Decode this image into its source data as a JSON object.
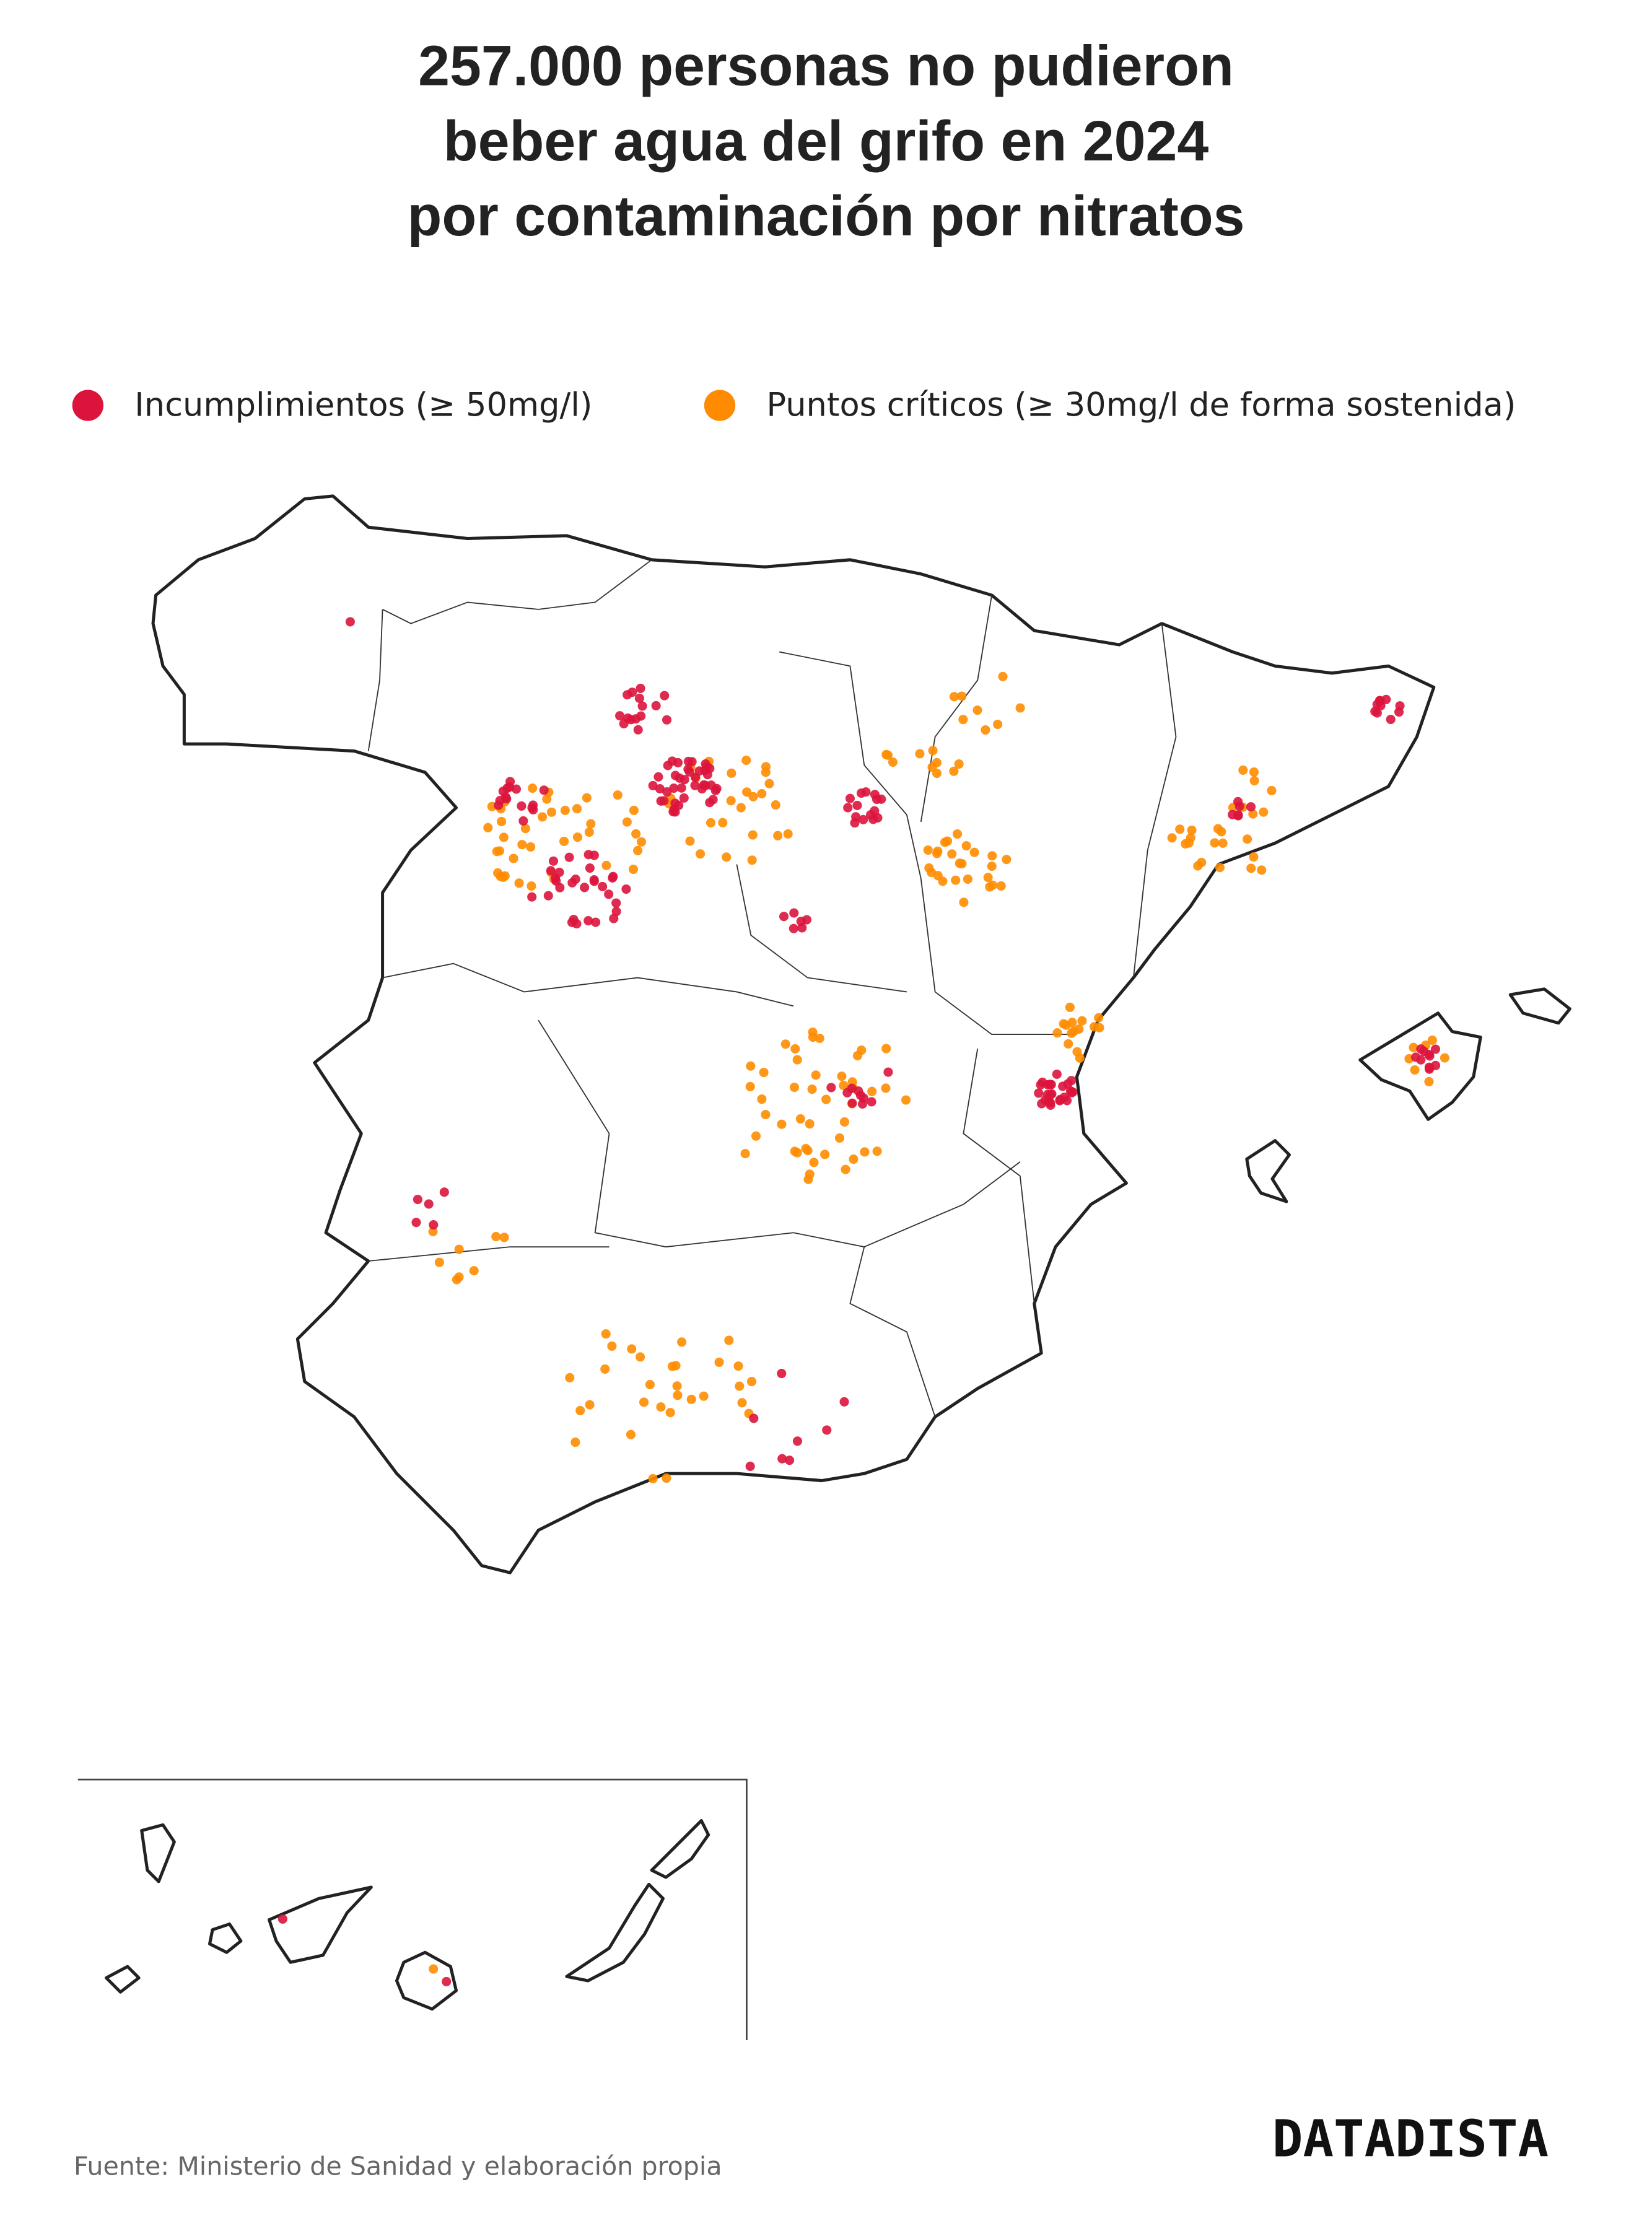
{
  "title": [
    "257.000 personas no pudieron",
    "beber agua del grifo en 2024",
    "por contaminación por nitratos"
  ],
  "legend": [
    {
      "label": "Incumplimientos (≥ 50mg/l)",
      "color": "#dc143c"
    },
    {
      "label": "Puntos críticos (≥ 30mg/l de forma sostenida)",
      "color": "#ff8c00"
    }
  ],
  "source": "Fuente: Ministerio de Sanidad y elaboración propia",
  "brand": "DATADISTA"
}
